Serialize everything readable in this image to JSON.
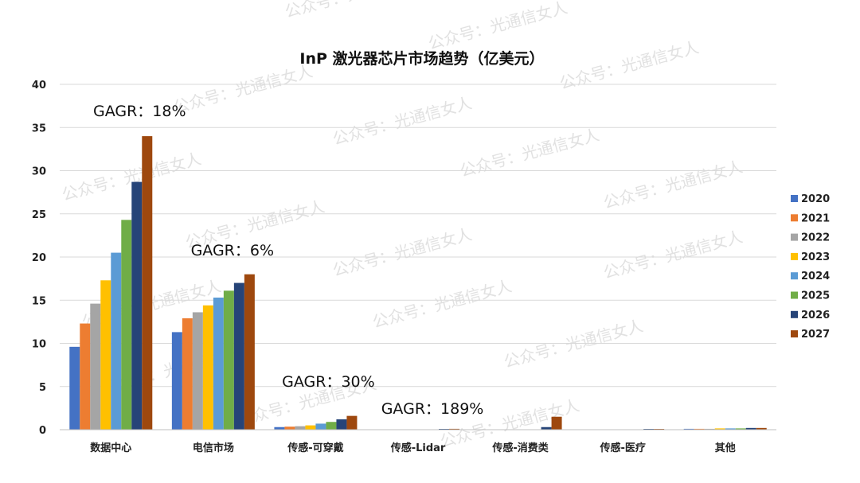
{
  "chart_data": {
    "type": "bar",
    "title": "InP 激光器芯片市场趋势（亿美元）",
    "categories": [
      "数据中心",
      "电信市场",
      "传感-可穿戴",
      "传感-Lidar",
      "传感-消费类",
      "传感-医疗",
      "其他"
    ],
    "ylim": [
      0,
      40
    ],
    "yticks": [
      "0",
      "5",
      "10",
      "15",
      "20",
      "25",
      "30",
      "35",
      "40"
    ],
    "grid": true,
    "legend_position": "right",
    "series": [
      {
        "name": "2020",
        "color": "#4472C4",
        "values": [
          9.6,
          11.3,
          0.3,
          0.0,
          0.0,
          0.0,
          0.1
        ]
      },
      {
        "name": "2021",
        "color": "#ED7D31",
        "values": [
          12.3,
          12.9,
          0.35,
          0.0,
          0.0,
          0.0,
          0.1
        ]
      },
      {
        "name": "2022",
        "color": "#A5A5A5",
        "values": [
          14.6,
          13.6,
          0.4,
          0.0,
          0.0,
          0.0,
          0.1
        ]
      },
      {
        "name": "2023",
        "color": "#FFC000",
        "values": [
          17.3,
          14.4,
          0.5,
          0.0,
          0.0,
          0.0,
          0.15
        ]
      },
      {
        "name": "2024",
        "color": "#5B9BD5",
        "values": [
          20.5,
          15.3,
          0.7,
          0.0,
          0.0,
          0.0,
          0.15
        ]
      },
      {
        "name": "2025",
        "color": "#70AD47",
        "values": [
          24.3,
          16.1,
          0.9,
          0.0,
          0.0,
          0.0,
          0.15
        ]
      },
      {
        "name": "2026",
        "color": "#264478",
        "values": [
          28.7,
          17.0,
          1.2,
          0.05,
          0.3,
          0.05,
          0.2
        ]
      },
      {
        "name": "2027",
        "color": "#9E480E",
        "values": [
          34.0,
          18.0,
          1.6,
          0.1,
          1.5,
          0.05,
          0.2
        ]
      }
    ],
    "annotations": [
      {
        "text": "GAGR：18%",
        "category": "数据中心"
      },
      {
        "text": "GAGR：6%",
        "category": "电信市场"
      },
      {
        "text": "GAGR：30%",
        "category": "传感-可穿戴"
      },
      {
        "text": "GAGR：189%",
        "category": "传感-Lidar"
      }
    ]
  },
  "watermark": "公众号：光通信女人"
}
